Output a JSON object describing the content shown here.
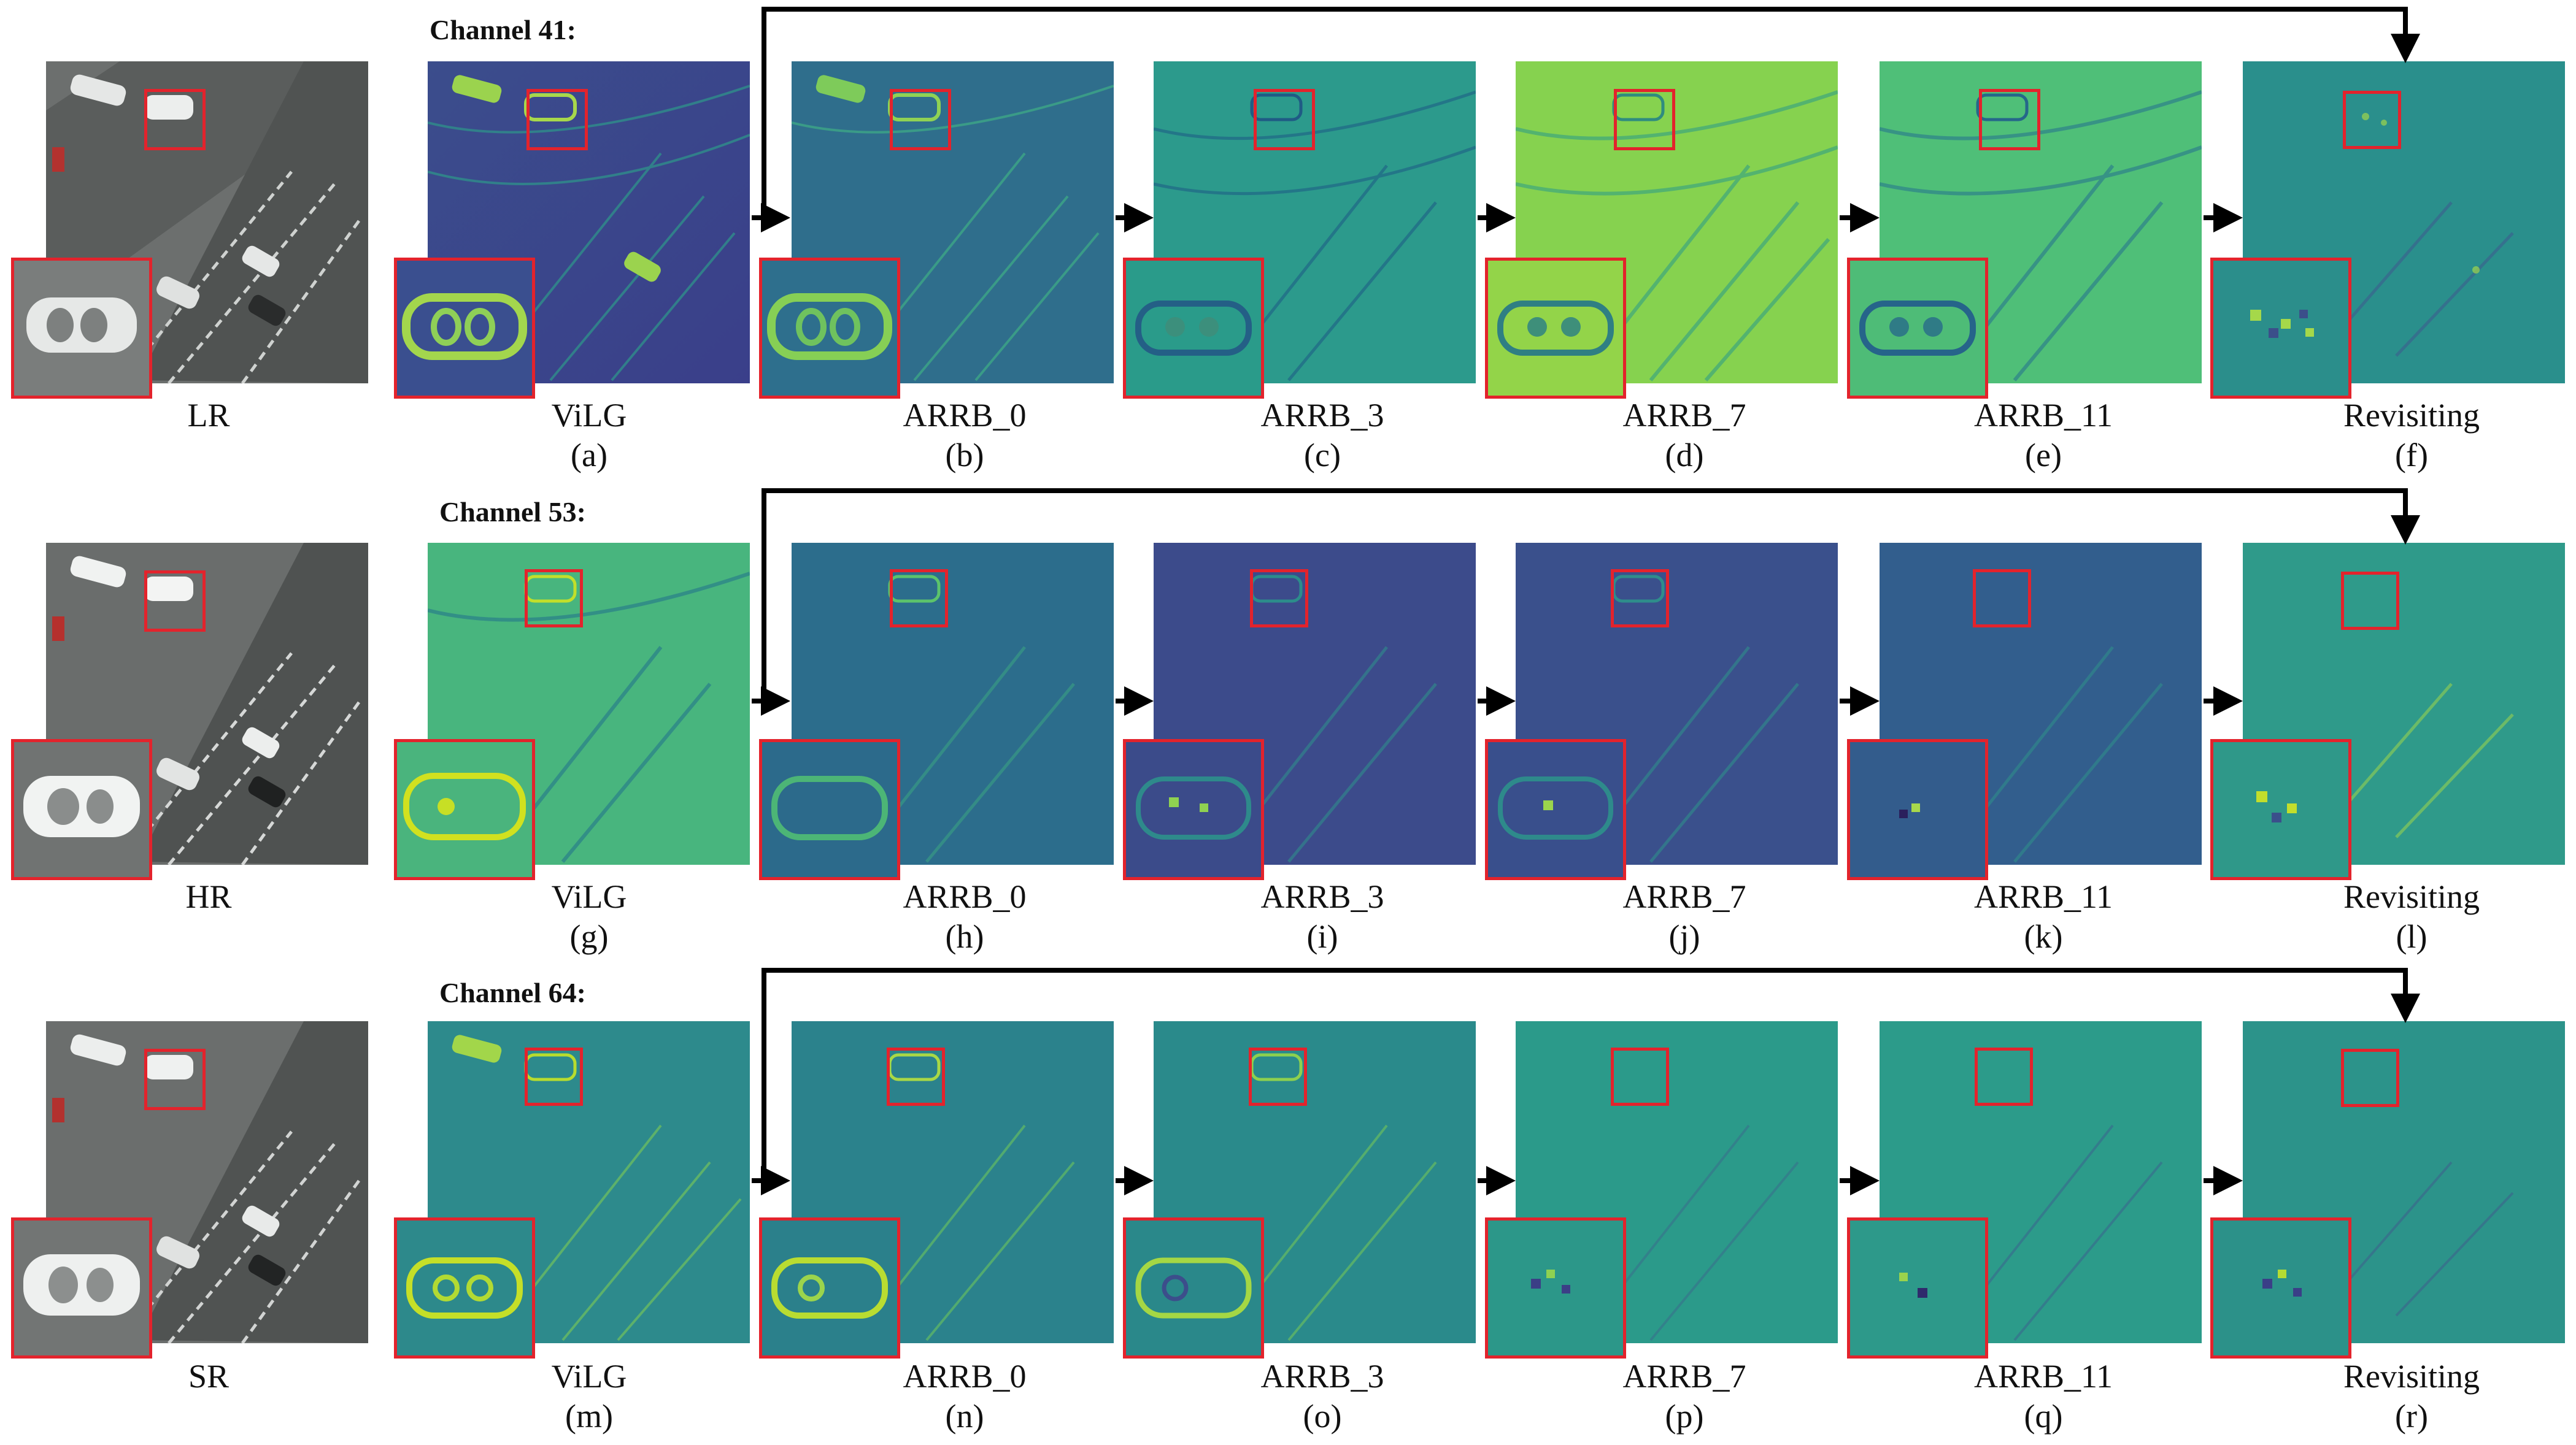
{
  "colors": {
    "highlight": "#e3232c",
    "arrow": "#000000",
    "grayscale_bg": "#6c6f6e",
    "viridis_dark": "#3b3d86",
    "viridis_teal": "#2c8a8c",
    "viridis_green": "#5ec962",
    "viridis_light": "#b5de2b"
  },
  "rows": [
    {
      "channel_label": "Channel 41:",
      "image_caption": "LR",
      "panels": [
        {
          "name": "ViLG",
          "letter": "(a)",
          "tone": "dark-blue"
        },
        {
          "name": "ARRB_0",
          "letter": "(b)",
          "tone": "teal"
        },
        {
          "name": "ARRB_3",
          "letter": "(c)",
          "tone": "teal-light"
        },
        {
          "name": "ARRB_7",
          "letter": "(d)",
          "tone": "lime"
        },
        {
          "name": "ARRB_11",
          "letter": "(e)",
          "tone": "green"
        },
        {
          "name": "Revisiting",
          "letter": "(f)",
          "tone": "teal"
        }
      ]
    },
    {
      "channel_label": "Channel 53:",
      "image_caption": "HR",
      "panels": [
        {
          "name": "ViLG",
          "letter": "(g)",
          "tone": "green"
        },
        {
          "name": "ARRB_0",
          "letter": "(h)",
          "tone": "teal-dark"
        },
        {
          "name": "ARRB_3",
          "letter": "(i)",
          "tone": "indigo"
        },
        {
          "name": "ARRB_7",
          "letter": "(j)",
          "tone": "indigo"
        },
        {
          "name": "ARRB_11",
          "letter": "(k)",
          "tone": "blue"
        },
        {
          "name": "Revisiting",
          "letter": "(l)",
          "tone": "teal-light"
        }
      ]
    },
    {
      "channel_label": "Channel 64:",
      "image_caption": "SR",
      "panels": [
        {
          "name": "ViLG",
          "letter": "(m)",
          "tone": "teal"
        },
        {
          "name": "ARRB_0",
          "letter": "(n)",
          "tone": "teal"
        },
        {
          "name": "ARRB_3",
          "letter": "(o)",
          "tone": "teal"
        },
        {
          "name": "ARRB_7",
          "letter": "(p)",
          "tone": "teal-light"
        },
        {
          "name": "ARRB_11",
          "letter": "(q)",
          "tone": "teal-light"
        },
        {
          "name": "Revisiting",
          "letter": "(r)",
          "tone": "teal"
        }
      ]
    }
  ]
}
